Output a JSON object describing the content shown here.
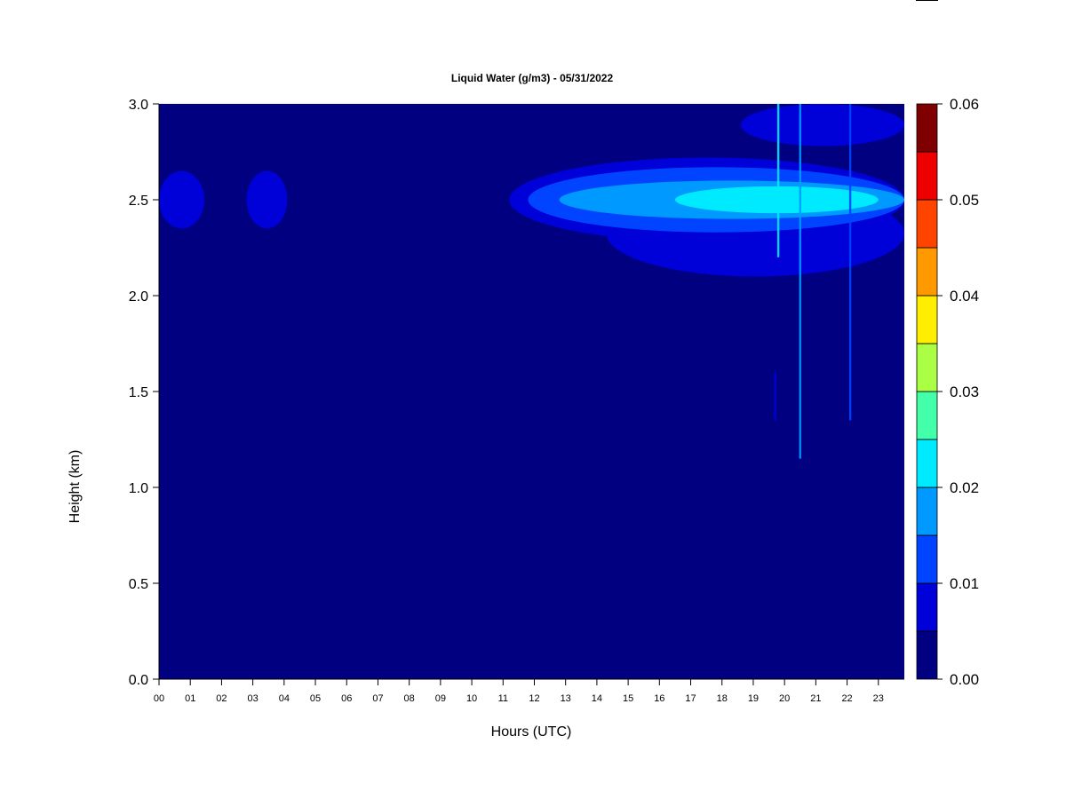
{
  "chart_data": {
    "type": "heatmap",
    "title": "Liquid Water (g/m3) - 05/31/2022",
    "xlabel": "Hours (UTC)",
    "ylabel": "Height (km)",
    "xlim": [
      0,
      23.83
    ],
    "ylim": [
      0,
      3.0
    ],
    "x_ticks": [
      "00",
      "01",
      "02",
      "03",
      "04",
      "05",
      "06",
      "07",
      "08",
      "09",
      "10",
      "11",
      "12",
      "13",
      "14",
      "15",
      "16",
      "17",
      "18",
      "19",
      "20",
      "21",
      "22",
      "23"
    ],
    "y_ticks": [
      "0.0",
      "0.5",
      "1.0",
      "1.5",
      "2.0",
      "2.5",
      "3.0"
    ],
    "colorbar": {
      "levels": [
        0.0,
        0.005,
        0.01,
        0.015,
        0.02,
        0.025,
        0.03,
        0.035,
        0.04,
        0.045,
        0.05,
        0.055,
        0.06
      ],
      "colors": [
        "#000080",
        "#0000d8",
        "#0044ff",
        "#0099ff",
        "#00eaff",
        "#44ffaa",
        "#aaff44",
        "#ffee00",
        "#ff9900",
        "#ff4400",
        "#ee0000",
        "#7f0000"
      ],
      "tick_labels": [
        "0.00",
        "0.01",
        "0.02",
        "0.03",
        "0.04",
        "0.05",
        "0.06"
      ]
    },
    "grid": false,
    "features": [
      {
        "x": [
          0.0,
          1.45
        ],
        "y": [
          2.35,
          2.65
        ],
        "level": 1
      },
      {
        "x": [
          2.8,
          4.1
        ],
        "y": [
          2.35,
          2.65
        ],
        "level": 1
      },
      {
        "x": [
          11.2,
          23.83
        ],
        "y": [
          2.28,
          2.72
        ],
        "level": 1
      },
      {
        "x": [
          14.3,
          23.83
        ],
        "y": [
          2.1,
          2.55
        ],
        "level": 1
      },
      {
        "x": [
          18.6,
          23.83
        ],
        "y": [
          2.78,
          3.0
        ],
        "level": 1
      },
      {
        "x": [
          11.8,
          23.83
        ],
        "y": [
          2.33,
          2.67
        ],
        "level": 2
      },
      {
        "x": [
          12.8,
          23.83
        ],
        "y": [
          2.4,
          2.6
        ],
        "level": 3
      },
      {
        "x": [
          16.5,
          23.0
        ],
        "y": [
          2.43,
          2.57
        ],
        "level": 4
      }
    ],
    "spikes": [
      {
        "x": 19.8,
        "y": [
          2.2,
          3.0
        ],
        "level": 4
      },
      {
        "x": 20.5,
        "y": [
          1.15,
          3.0
        ],
        "level": 3
      },
      {
        "x": 22.1,
        "y": [
          1.35,
          3.0
        ],
        "level": 2
      },
      {
        "x": 19.7,
        "y": [
          1.35,
          1.6
        ],
        "level": 1
      }
    ]
  }
}
